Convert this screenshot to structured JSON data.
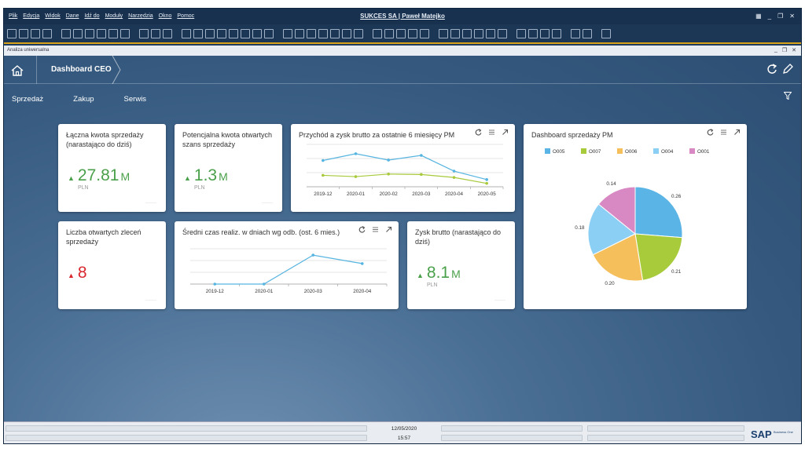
{
  "menubar": {
    "items": [
      "Plik",
      "Edycja",
      "Widok",
      "Dane",
      "Idź do",
      "Moduły",
      "Narzędzia",
      "Okno",
      "Pomoc"
    ],
    "title": "SUKCES SA | Paweł Matejko"
  },
  "window": {
    "title": "Analiza uniwersalna"
  },
  "breadcrumb": {
    "label": "Dashboard CEO"
  },
  "tabs": [
    "Sprzedaż",
    "Zakup",
    "Serwis"
  ],
  "kpis": {
    "sales": {
      "title": "Łączna kwota sprzedaży (narastająco do dziś)",
      "value": "27.81",
      "suffix": "M",
      "unit": "PLN",
      "trend": "up"
    },
    "potential": {
      "title": "Potencjalna kwota otwartych szans sprzedaży",
      "value": "1.3",
      "suffix": "M",
      "unit": "PLN",
      "trend": "up"
    },
    "orders": {
      "title": "Liczba otwartych zleceń sprzedaży",
      "value": "8",
      "trend": "up"
    },
    "profit": {
      "title": "Zysk brutto (narastająco do dziś)",
      "value": "8.1",
      "suffix": "M",
      "unit": "PLN",
      "trend": "up"
    }
  },
  "chart_data": [
    {
      "type": "line",
      "title": "Przychód a zysk brutto za ostatnie 6 miesięcy PM",
      "categories": [
        "2019-12",
        "2020-01",
        "2020-02",
        "2020-03",
        "2020-04",
        "2020-05"
      ],
      "series": [
        {
          "values": [
            0.62,
            0.78,
            0.63,
            0.74,
            0.37,
            0.17
          ],
          "color": "#56b4e0"
        },
        {
          "values": [
            0.27,
            0.24,
            0.3,
            0.29,
            0.22,
            0.08
          ],
          "color": "#a7c93a"
        }
      ],
      "grid": true
    },
    {
      "type": "line",
      "title": "Średni czas realiz. w dniach wg odb. (ost. 6 mies.)",
      "categories": [
        "2019-12",
        "2020-01",
        "2020-03",
        "2020-04"
      ],
      "series": [
        {
          "values": [
            0,
            0,
            0.82,
            0.58
          ],
          "color": "#56b4e0"
        }
      ],
      "grid": true
    },
    {
      "type": "pie",
      "title": "Dashboard sprzedaży PM",
      "legend": "top",
      "categories": [
        "O005",
        "O007",
        "O006",
        "O004",
        "O001"
      ],
      "values": [
        0.26,
        0.21,
        0.2,
        0.18,
        0.14
      ],
      "colors": [
        "#5ab4e5",
        "#a8cb3c",
        "#f5bf5c",
        "#8ccff5",
        "#d889c4"
      ]
    }
  ],
  "statusbar": {
    "date": "12/05/2020",
    "time": "15:57"
  },
  "logo": {
    "text": "SAP",
    "sub": "Business One"
  }
}
